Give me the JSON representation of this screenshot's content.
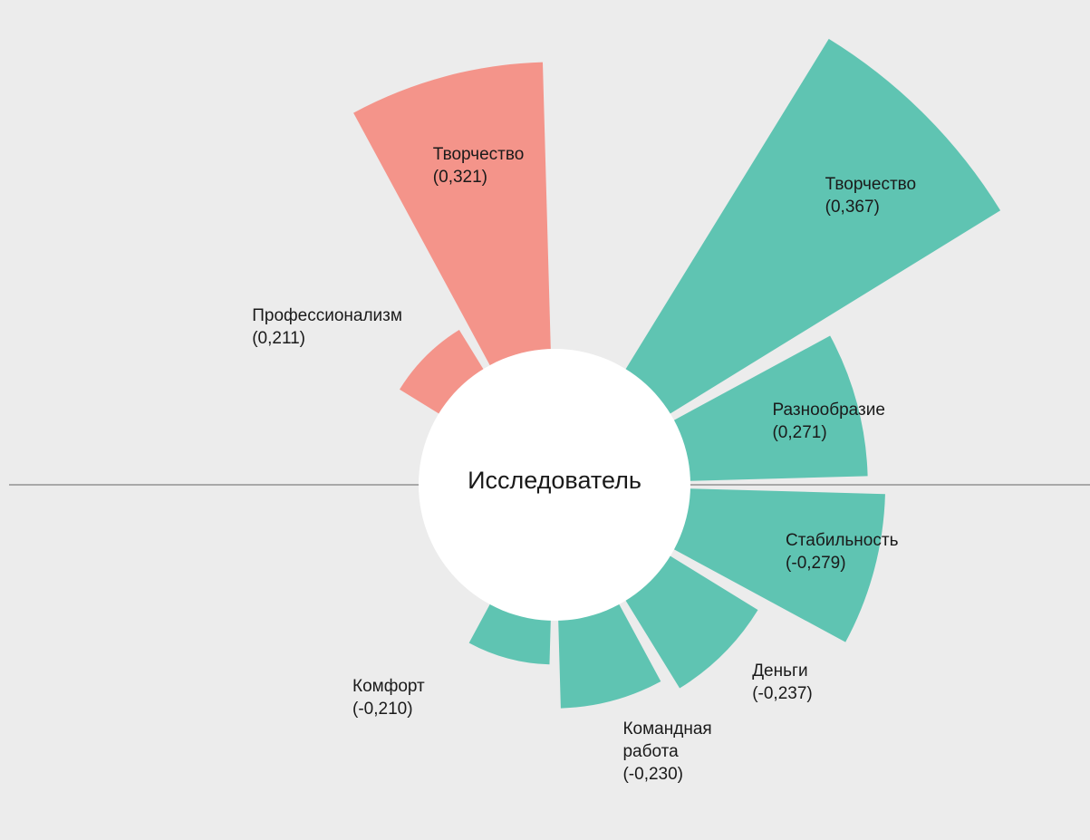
{
  "chart_data": {
    "type": "radial_bar",
    "center_label": "Исследователь",
    "categories": [
      "Профессионализм",
      "Творчество",
      null,
      "Творчество",
      "Разнообразие",
      "Стабильность",
      "Деньги",
      "Командная работа",
      "Комфорт"
    ],
    "values": [
      0.211,
      0.321,
      null,
      0.367,
      0.271,
      -0.279,
      -0.237,
      -0.23,
      -0.21
    ],
    "value_labels": [
      "(0,211)",
      "(0,321)",
      null,
      "(0,367)",
      "(0,271)",
      "(-0,279)",
      "(-0,237)",
      "(-0,230)",
      "(-0,210)"
    ],
    "colors": [
      "#f4948a",
      "#f4948a",
      null,
      "#5fc4b2",
      "#5fc4b2",
      "#5fc4b2",
      "#5fc4b2",
      "#5fc4b2",
      "#5fc4b2"
    ],
    "rlim": [
      0.19,
      0.37
    ]
  }
}
